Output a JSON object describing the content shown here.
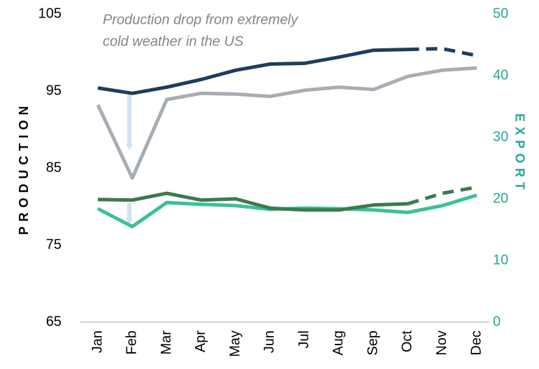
{
  "chart_data": {
    "type": "line",
    "annotation": [
      "Production drop from extremely",
      "cold weather in the US"
    ],
    "ylabel": "PRODUCTION",
    "y2label": "EXPORT",
    "categories": [
      "Jan",
      "Feb",
      "Mar",
      "Apr",
      "May",
      "Jun",
      "Jul",
      "Aug",
      "Sep",
      "Oct",
      "Nov",
      "Dec"
    ],
    "ylim": [
      65,
      105
    ],
    "yticks": [
      65,
      75,
      85,
      95,
      105
    ],
    "y2lim": [
      0,
      50
    ],
    "y2ticks": [
      0,
      10,
      20,
      30,
      40,
      50
    ],
    "series": [
      {
        "color": "#a6adb4",
        "values": [
          93.2,
          83.7,
          93.9,
          94.7,
          94.6,
          94.3,
          95.1,
          95.5,
          95.2,
          96.9,
          97.7,
          98.0
        ]
      },
      {
        "color": "#1f3d5c",
        "forecast_from": "Oct",
        "values": [
          95.4,
          94.7,
          95.5,
          96.5,
          97.7,
          98.5,
          98.6,
          99.4,
          100.3,
          100.4,
          100.5,
          99.6
        ]
      },
      {
        "color": "#3dbf9a",
        "axis": "y2",
        "values": [
          18.4,
          15.5,
          19.4,
          19.1,
          18.9,
          18.3,
          18.5,
          18.4,
          18.2,
          17.8,
          18.9,
          20.6
        ]
      },
      {
        "color": "#3d7a4f",
        "axis": "y2",
        "forecast_from": "Oct",
        "values": [
          19.9,
          19.8,
          20.9,
          19.8,
          20.0,
          18.5,
          18.2,
          18.2,
          19.0,
          19.2,
          20.9,
          21.9
        ]
      }
    ]
  }
}
